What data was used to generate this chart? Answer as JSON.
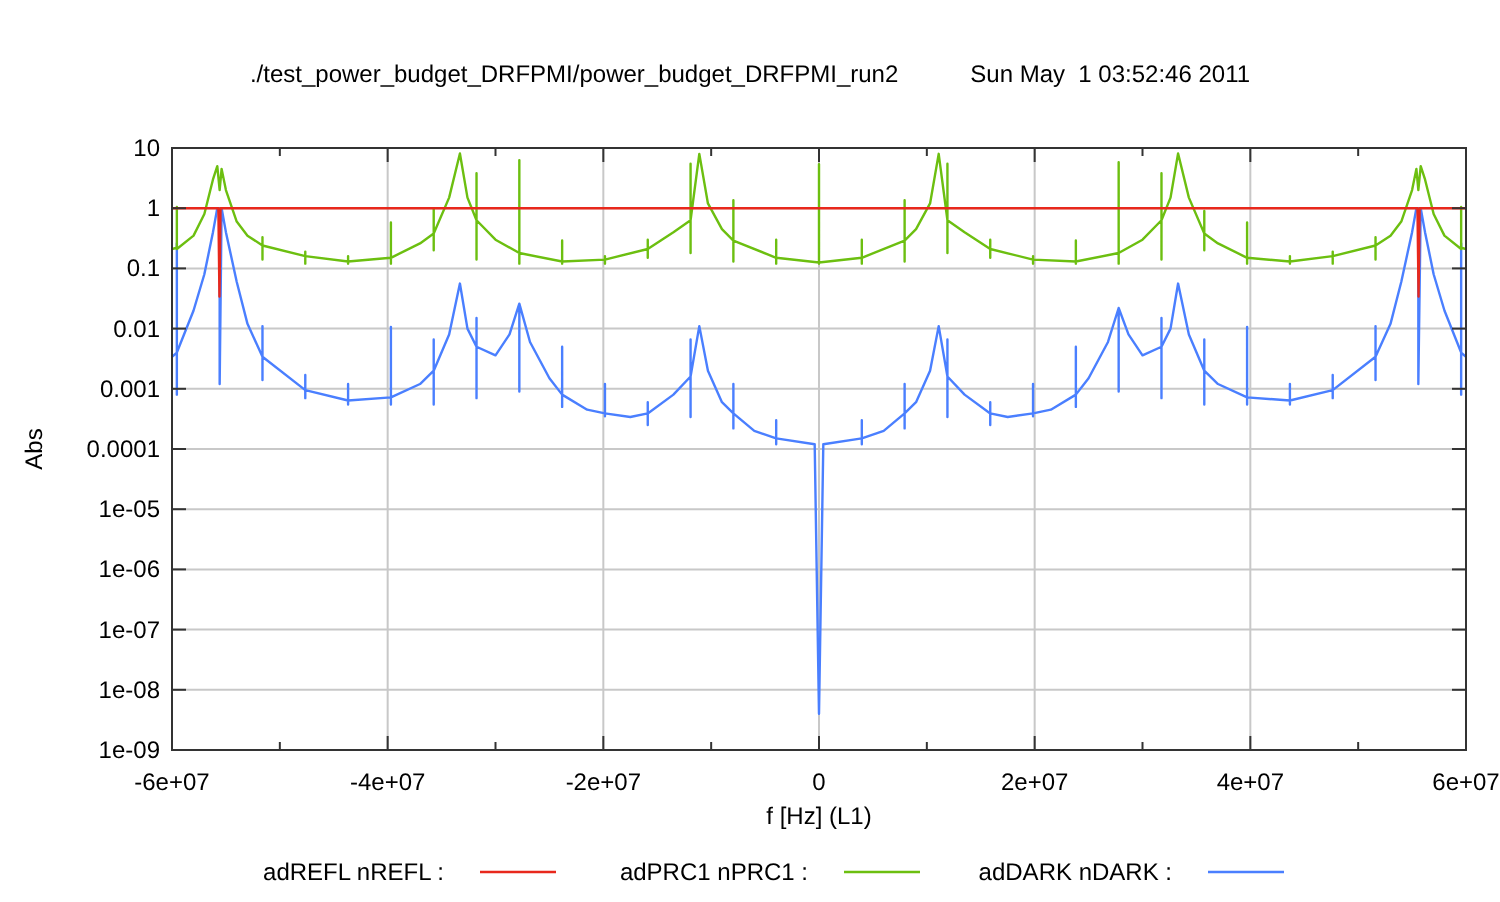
{
  "chart_data": {
    "type": "line",
    "title": "./test_power_budget_DRFPMI/power_budget_DRFPMI_run2",
    "subtitle": "Sun May  1 03:52:46 2011",
    "xlabel": "f [Hz] (L1)",
    "ylabel": "Abs",
    "log": "y",
    "grid": true,
    "legend": "bottom",
    "line_style": "solid",
    "marker": "none",
    "xlim": [
      -60000000.0,
      60000000.0
    ],
    "xticks": [
      {
        "value": -60000000.0,
        "label": "-6e+07"
      },
      {
        "value": -50000000.0,
        "label": null
      },
      {
        "value": -40000000.0,
        "label": "-4e+07"
      },
      {
        "value": -30000000.0,
        "label": null
      },
      {
        "value": -20000000.0,
        "label": "-2e+07"
      },
      {
        "value": -10000000.0,
        "label": null
      },
      0,
      {
        "value": 10000000.0,
        "label": null
      },
      {
        "value": 20000000.0,
        "label": "2e+07"
      },
      {
        "value": 30000000.0,
        "label": null
      },
      {
        "value": 40000000.0,
        "label": "4e+07"
      },
      {
        "value": 50000000.0,
        "label": null
      },
      {
        "value": 60000000.0,
        "label": "6e+07"
      }
    ],
    "ylim": [
      1e-09,
      10
    ],
    "yticks": [
      {
        "value": 1e-09,
        "label": "1e-09"
      },
      {
        "value": 1e-08,
        "label": "1e-08"
      },
      {
        "value": 1e-07,
        "label": "1e-07"
      },
      {
        "value": 1e-06,
        "label": "1e-06"
      },
      {
        "value": 1e-05,
        "label": "1e-05"
      },
      0.0001,
      0.001,
      0.01,
      0.1,
      1,
      10
    ],
    "series": [
      {
        "name": "adREFL nREFL :",
        "color": "#e8281c",
        "x": [
          -60000000.0,
          -55700000.0,
          -55600000.0,
          -55500000.0,
          55500000.0,
          55600000.0,
          55700000.0,
          60000000.0
        ],
        "values": [
          1,
          1,
          0.034,
          1,
          1,
          0.034,
          1,
          1
        ]
      },
      {
        "name": "adPRC1 nPRC1 :",
        "color": "#6cbf10",
        "x": [
          -60000000.0,
          -59550000.0,
          -59550000.0,
          -59550000.0,
          -58000000.0,
          -57000000.0,
          -56200000.0,
          -55800000.0,
          -55580000.0,
          -55400000.0,
          -55000000.0,
          -54000000.0,
          -53000000.0,
          -51610000.0,
          -51610000.0,
          -51610000.0,
          -51610000.0,
          -47640000.0,
          -47640000.0,
          -47640000.0,
          -47640000.0,
          -43670000.0,
          -43670000.0,
          -43670000.0,
          -43670000.0,
          -39700000.0,
          -39700000.0,
          -39700000.0,
          -39700000.0,
          -37000000.0,
          -35730000.0,
          -35730000.0,
          -35730000.0,
          -35730000.0,
          -34300000.0,
          -33300000.0,
          -32600000.0,
          -31760000.0,
          -31760000.0,
          -31760000.0,
          -31760000.0,
          -30000000.0,
          -27790000.0,
          -27790000.0,
          -27790000.0,
          -27790000.0,
          -23820000.0,
          -23820000.0,
          -23820000.0,
          -23820000.0,
          -19850000.0,
          -19850000.0,
          -19850000.0,
          -19850000.0,
          -15880000.0,
          -15880000.0,
          -15880000.0,
          -15880000.0,
          -13500000.0,
          -11910000.0,
          -11910000.0,
          -11910000.0,
          -11910000.0,
          -11100000.0,
          -10300000.0,
          -9000000.0,
          -7940000.0,
          -7940000.0,
          -7940000.0,
          -7940000.0,
          -3970000.0,
          -3970000.0,
          -3970000.0,
          -3970000.0,
          0,
          0,
          0,
          0,
          3970000.0,
          3970000.0,
          3970000.0,
          3970000.0,
          7940000.0,
          7940000.0,
          7940000.0,
          7940000.0,
          9000000.0,
          10300000.0,
          11100000.0,
          11910000.0,
          11910000.0,
          11910000.0,
          11910000.0,
          13500000.0,
          15880000.0,
          15880000.0,
          15880000.0,
          15880000.0,
          19850000.0,
          19850000.0,
          19850000.0,
          19850000.0,
          23820000.0,
          23820000.0,
          23820000.0,
          23820000.0,
          27790000.0,
          27790000.0,
          27790000.0,
          27790000.0,
          30000000.0,
          31760000.0,
          31760000.0,
          31760000.0,
          31760000.0,
          32600000.0,
          33300000.0,
          34300000.0,
          35730000.0,
          35730000.0,
          35730000.0,
          35730000.0,
          37000000.0,
          39700000.0,
          39700000.0,
          39700000.0,
          39700000.0,
          43670000.0,
          43670000.0,
          43670000.0,
          43670000.0,
          47640000.0,
          47640000.0,
          47640000.0,
          47640000.0,
          51610000.0,
          51610000.0,
          51610000.0,
          51610000.0,
          53000000.0,
          54000000.0,
          55000000.0,
          55400000.0,
          55580000.0,
          55800000.0,
          56200000.0,
          57000000.0,
          58000000.0,
          59550000.0,
          59550000.0,
          59550000.0,
          60000000.0
        ],
        "values": [
          0.21,
          0.22,
          1.05,
          0.21,
          0.35,
          0.8,
          3,
          5,
          2,
          4.5,
          2,
          0.6,
          0.35,
          0.24,
          0.33,
          0.14,
          0.24,
          0.16,
          0.19,
          0.12,
          0.16,
          0.13,
          0.16,
          0.12,
          0.13,
          0.15,
          0.58,
          0.12,
          0.15,
          0.26,
          0.38,
          0.98,
          0.2,
          0.38,
          1.5,
          8.1,
          1.5,
          0.63,
          3.8,
          0.14,
          0.63,
          0.3,
          0.18,
          6.3,
          0.12,
          0.18,
          0.13,
          0.29,
          0.12,
          0.13,
          0.14,
          0.16,
          0.12,
          0.14,
          0.21,
          0.3,
          0.15,
          0.21,
          0.4,
          0.63,
          5.5,
          0.18,
          0.63,
          8,
          1.2,
          0.45,
          0.29,
          1.36,
          0.13,
          0.29,
          0.15,
          0.3,
          0.12,
          0.15,
          0.125,
          5.4,
          0.12,
          0.125,
          0.15,
          0.3,
          0.12,
          0.15,
          0.29,
          1.36,
          0.13,
          0.29,
          0.45,
          1.2,
          8,
          0.63,
          5.5,
          0.18,
          0.63,
          0.4,
          0.21,
          0.3,
          0.15,
          0.21,
          0.14,
          0.16,
          0.12,
          0.14,
          0.13,
          0.29,
          0.12,
          0.13,
          0.18,
          5.8,
          0.12,
          0.18,
          0.3,
          0.63,
          3.8,
          0.14,
          0.63,
          1.5,
          8.1,
          1.5,
          0.38,
          0.9,
          0.2,
          0.38,
          0.26,
          0.15,
          0.58,
          0.12,
          0.15,
          0.13,
          0.16,
          0.12,
          0.13,
          0.16,
          0.19,
          0.12,
          0.16,
          0.24,
          0.33,
          0.14,
          0.24,
          0.35,
          0.6,
          2,
          4.5,
          2,
          5,
          3,
          0.8,
          0.35,
          0.21,
          1.05,
          0.22,
          0.21
        ]
      },
      {
        "name": "adDARK nDARK :",
        "color": "#4a7fff",
        "x": [
          -60000000.0,
          -59550000.0,
          -59550000.0,
          -59550000.0,
          -59550000.0,
          -58000000.0,
          -57000000.0,
          -56200000.0,
          -55800000.0,
          -55580000.0,
          -55580000.0,
          -55400000.0,
          -55000000.0,
          -54000000.0,
          -53000000.0,
          -51610000.0,
          -51610000.0,
          -51610000.0,
          -51610000.0,
          -47640000.0,
          -47640000.0,
          -47640000.0,
          -47640000.0,
          -43670000.0,
          -43670000.0,
          -43670000.0,
          -43670000.0,
          -39700000.0,
          -39700000.0,
          -39700000.0,
          -39700000.0,
          -37000000.0,
          -35730000.0,
          -35730000.0,
          -35730000.0,
          -35730000.0,
          -34300000.0,
          -33300000.0,
          -32600000.0,
          -31760000.0,
          -31760000.0,
          -31760000.0,
          -31760000.0,
          -30000000.0,
          -28700000.0,
          -27790000.0,
          -27790000.0,
          -27790000.0,
          -26800000.0,
          -25000000.0,
          -23820000.0,
          -23820000.0,
          -23820000.0,
          -23820000.0,
          -21500000.0,
          -19850000.0,
          -19850000.0,
          -19850000.0,
          -19850000.0,
          -17500000.0,
          -15880000.0,
          -15880000.0,
          -15880000.0,
          -15880000.0,
          -13500000.0,
          -11910000.0,
          -11910000.0,
          -11910000.0,
          -11910000.0,
          -11100000.0,
          -10300000.0,
          -9000000.0,
          -7940000.0,
          -7940000.0,
          -7940000.0,
          -7940000.0,
          -6000000.0,
          -3970000.0,
          -3970000.0,
          -3970000.0,
          -3970000.0,
          -400000.0,
          0,
          400000.0,
          3970000.0,
          3970000.0,
          3970000.0,
          3970000.0,
          6000000.0,
          7940000.0,
          7940000.0,
          7940000.0,
          7940000.0,
          9000000.0,
          10300000.0,
          11100000.0,
          11910000.0,
          11910000.0,
          11910000.0,
          11910000.0,
          13500000.0,
          15880000.0,
          15880000.0,
          15880000.0,
          15880000.0,
          17500000.0,
          19850000.0,
          19850000.0,
          19850000.0,
          19850000.0,
          21500000.0,
          23820000.0,
          23820000.0,
          23820000.0,
          23820000.0,
          25000000.0,
          26800000.0,
          27790000.0,
          27790000.0,
          27790000.0,
          28700000.0,
          30000000.0,
          31760000.0,
          31760000.0,
          31760000.0,
          31760000.0,
          32600000.0,
          33300000.0,
          34300000.0,
          35730000.0,
          35730000.0,
          35730000.0,
          35730000.0,
          37000000.0,
          39700000.0,
          39700000.0,
          39700000.0,
          39700000.0,
          43670000.0,
          43670000.0,
          43670000.0,
          43670000.0,
          47640000.0,
          47640000.0,
          47640000.0,
          47640000.0,
          51610000.0,
          51610000.0,
          51610000.0,
          51610000.0,
          53000000.0,
          54000000.0,
          55000000.0,
          55400000.0,
          55580000.0,
          55580000.0,
          55800000.0,
          56200000.0,
          57000000.0,
          58000000.0,
          59550000.0,
          59550000.0,
          59550000.0,
          59550000.0,
          60000000.0
        ],
        "values": [
          0.0034,
          0.004,
          0.26,
          0.0008,
          0.004,
          0.02,
          0.08,
          0.4,
          1,
          1,
          0.0012,
          1,
          0.4,
          0.06,
          0.012,
          0.0034,
          0.011,
          0.0014,
          0.0034,
          0.00095,
          0.0017,
          0.0007,
          0.00095,
          0.00064,
          0.0012,
          0.00055,
          0.00064,
          0.00072,
          0.0107,
          0.00055,
          0.00072,
          0.0012,
          0.002,
          0.0066,
          0.00055,
          0.002,
          0.008,
          0.056,
          0.01,
          0.005,
          0.015,
          0.0007,
          0.005,
          0.0036,
          0.008,
          0.026,
          0.0009,
          0.026,
          0.006,
          0.0015,
          0.0008,
          0.005,
          0.0005,
          0.0008,
          0.00045,
          0.00039,
          0.0012,
          0.00035,
          0.00039,
          0.00034,
          0.00039,
          0.0006,
          0.00025,
          0.00039,
          0.0008,
          0.0016,
          0.0066,
          0.00034,
          0.0016,
          0.011,
          0.002,
          0.0006,
          0.00039,
          0.0012,
          0.00022,
          0.00039,
          0.0002,
          0.00015,
          0.0003,
          0.00012,
          0.00015,
          0.00012,
          4e-09,
          0.00012,
          0.00015,
          0.0003,
          0.00012,
          0.00015,
          0.0002,
          0.00039,
          0.0012,
          0.00022,
          0.00039,
          0.0006,
          0.002,
          0.011,
          0.0016,
          0.0066,
          0.00034,
          0.0016,
          0.0008,
          0.00039,
          0.0006,
          0.00025,
          0.00039,
          0.00034,
          0.00039,
          0.0012,
          0.00035,
          0.00039,
          0.00045,
          0.0008,
          0.005,
          0.0005,
          0.0008,
          0.0015,
          0.006,
          0.022,
          0.0009,
          0.022,
          0.008,
          0.0036,
          0.005,
          0.015,
          0.0007,
          0.005,
          0.01,
          0.056,
          0.008,
          0.002,
          0.0066,
          0.00055,
          0.002,
          0.0012,
          0.00072,
          0.0107,
          0.00055,
          0.00072,
          0.00064,
          0.0012,
          0.00055,
          0.00064,
          0.00095,
          0.0017,
          0.0007,
          0.00095,
          0.0034,
          0.011,
          0.0014,
          0.0034,
          0.012,
          0.06,
          0.4,
          1,
          1,
          0.0012,
          1,
          0.4,
          0.08,
          0.02,
          0.004,
          0.26,
          0.0008,
          0.004,
          0.0034
        ]
      }
    ]
  }
}
